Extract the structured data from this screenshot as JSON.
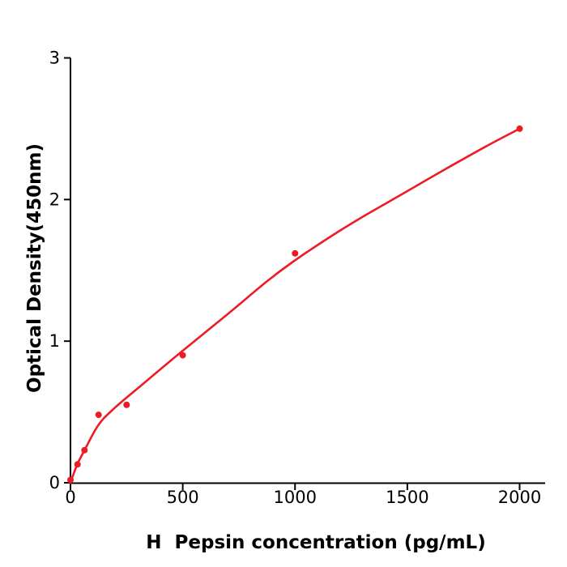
{
  "figure": {
    "background_color": "#ffffff",
    "axis_color": "#000000",
    "accent_color": "#ed1c24"
  },
  "chart_data": {
    "type": "scatter",
    "title": "",
    "xlabel": "H  Pepsin concentration (pg/mL)",
    "ylabel": "Optical Density(450nm)",
    "xlim": [
      0,
      2114
    ],
    "ylim": [
      0,
      3
    ],
    "xticks": [
      0,
      500,
      1000,
      1500,
      2000
    ],
    "yticks": [
      0,
      1,
      2,
      3
    ],
    "grid": false,
    "legend_position": "none",
    "marker_color": "#ed1c24",
    "line_color": "#ed1c24",
    "series": [
      {
        "name": "standard-data-points",
        "type": "scatter",
        "x": [
          0,
          31.2,
          62.5,
          125,
          250,
          500,
          1000,
          2000
        ],
        "y": [
          0.02,
          0.13,
          0.23,
          0.48,
          0.55,
          0.9,
          1.62,
          2.5
        ]
      },
      {
        "name": "fitted-curve",
        "type": "line",
        "x": [
          0,
          29,
          61,
          123,
          191,
          317,
          498,
          703,
          877,
          999,
          1165,
          1309,
          1501,
          1670,
          1850,
          2006
        ],
        "y": [
          0,
          0.125,
          0.225,
          0.405,
          0.52,
          0.69,
          0.93,
          1.195,
          1.425,
          1.57,
          1.745,
          1.885,
          2.06,
          2.215,
          2.375,
          2.505
        ]
      }
    ]
  }
}
